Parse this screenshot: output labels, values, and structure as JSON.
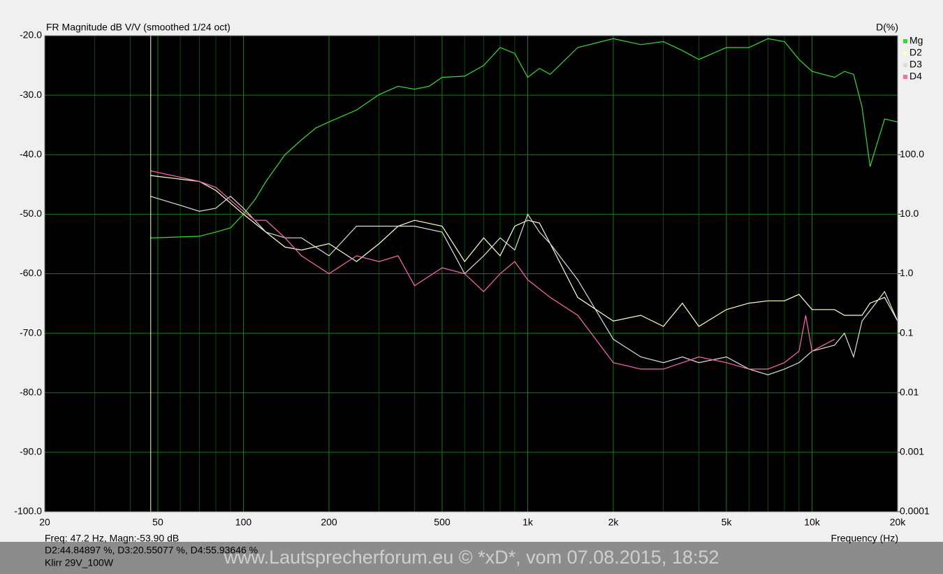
{
  "chart_data": {
    "type": "line",
    "title": "FR Magnitude dB V/V (smoothed 1/24 oct)",
    "y2_label": "D(%)",
    "x_label": "Frequency (Hz)",
    "x_log": true,
    "y2_log": true,
    "grid": true,
    "legend": "right",
    "xlim": [
      20,
      20000
    ],
    "xticks": [
      20,
      50,
      100,
      200,
      500,
      {
        "value": 1000,
        "label": "1k"
      },
      {
        "value": 2000,
        "label": "2k"
      },
      {
        "value": 5000,
        "label": "5k"
      },
      {
        "value": 10000,
        "label": "10k"
      },
      {
        "value": 20000,
        "label": "20k"
      }
    ],
    "x_minor_grid": [
      30,
      40,
      60,
      70,
      80,
      90,
      300,
      400,
      600,
      700,
      800,
      900,
      3000,
      4000,
      6000,
      7000,
      8000,
      9000
    ],
    "ylim": [
      -100,
      -20
    ],
    "yticks": [
      {
        "value": -20,
        "label": "-20.0"
      },
      {
        "value": -30,
        "label": "-30.0"
      },
      {
        "value": -40,
        "label": "-40.0"
      },
      {
        "value": -50,
        "label": "-50.0"
      },
      {
        "value": -60,
        "label": "-60.0"
      },
      {
        "value": -70,
        "label": "-70.0"
      },
      {
        "value": -80,
        "label": "-80.0"
      },
      {
        "value": -90,
        "label": "-90.0"
      },
      {
        "value": -100,
        "label": "-100.0"
      }
    ],
    "y2lim": [
      0.0001,
      10000
    ],
    "y2ticks": [
      {
        "value": 100,
        "label": "100.0"
      },
      {
        "value": 10,
        "label": "10.0"
      },
      {
        "value": 1,
        "label": "1.0"
      },
      0.1,
      0.01,
      0.001,
      0.0001
    ],
    "cursor_x": 47.2,
    "cursor_color": "#ffff99",
    "series": [
      {
        "name": "Mg",
        "color": "#33dd33",
        "x": [
          47,
          70,
          80,
          90,
          100,
          110,
          120,
          140,
          160,
          180,
          200,
          250,
          300,
          350,
          400,
          450,
          500,
          600,
          700,
          800,
          900,
          1000,
          1100,
          1200,
          1500,
          2000,
          2500,
          3000,
          3500,
          4000,
          5000,
          6000,
          7000,
          8000,
          9000,
          10000,
          12000,
          13000,
          14000,
          15000,
          16000,
          18000,
          20000
        ],
        "values": [
          -54,
          -53.7,
          -53,
          -52.3,
          -50,
          -47.5,
          -44.5,
          -40,
          -37.5,
          -35.5,
          -34.5,
          -32.5,
          -29.9,
          -28.5,
          -29,
          -28.5,
          -27,
          -26.8,
          -25,
          -22,
          -23,
          -27,
          -25.5,
          -26.5,
          -22,
          -20.5,
          -21.5,
          -21,
          -22.5,
          -24,
          -22,
          -22,
          -20.5,
          -21,
          -24,
          -26,
          -27,
          -26,
          -26.5,
          -32,
          -42,
          -34,
          -34.5
        ]
      },
      {
        "name": "D2",
        "color": "#ffffcc",
        "axis": "y2",
        "x": [
          47,
          70,
          80,
          100,
          120,
          140,
          160,
          200,
          250,
          300,
          350,
          400,
          500,
          600,
          700,
          800,
          900,
          1000,
          1100,
          1200,
          1500,
          2000,
          2500,
          3000,
          3500,
          4000,
          5000,
          6000,
          7000,
          8000,
          9000,
          10000,
          12000,
          13000,
          15000,
          16000,
          18000,
          20000
        ],
        "values": [
          44.7,
          35.5,
          25.1,
          10,
          5.0,
          2.8,
          2.5,
          3.2,
          1.6,
          3.2,
          6.3,
          7.9,
          6.3,
          1.6,
          4.0,
          2.0,
          6.3,
          7.9,
          7.1,
          3.2,
          0.4,
          0.16,
          0.2,
          0.13,
          0.32,
          0.13,
          0.25,
          0.32,
          0.35,
          0.35,
          0.45,
          0.25,
          0.25,
          0.2,
          0.2,
          0.32,
          0.4,
          0.16
        ]
      },
      {
        "name": "D3",
        "color": "#dddddd",
        "axis": "y2",
        "x": [
          47,
          60,
          70,
          80,
          90,
          100,
          120,
          140,
          160,
          200,
          250,
          300,
          350,
          400,
          500,
          600,
          700,
          800,
          900,
          1000,
          1100,
          1200,
          1500,
          2000,
          2500,
          3000,
          3500,
          4000,
          5000,
          6000,
          7000,
          8000,
          9000,
          10000,
          12000,
          13000,
          14000,
          15000,
          18000,
          20000
        ],
        "values": [
          20,
          14.1,
          11.2,
          12.6,
          20,
          12.6,
          5.0,
          4.0,
          4.0,
          2.0,
          6.3,
          6.3,
          6.3,
          6.3,
          5.0,
          1.0,
          2.0,
          4.0,
          2.5,
          10,
          5.0,
          3.2,
          0.79,
          0.079,
          0.04,
          0.032,
          0.04,
          0.032,
          0.04,
          0.025,
          0.02,
          0.025,
          0.032,
          0.05,
          0.063,
          0.1,
          0.04,
          0.16,
          0.5,
          0.16
        ]
      },
      {
        "name": "D4",
        "color": "#ff66b3",
        "axis": "y2",
        "x": [
          47,
          70,
          80,
          100,
          110,
          120,
          140,
          160,
          200,
          250,
          300,
          350,
          400,
          500,
          600,
          700,
          800,
          900,
          1000,
          1200,
          1500,
          2000,
          2500,
          3000,
          3500,
          4000,
          5000,
          6000,
          7000,
          8000,
          9000,
          9500,
          10000,
          12000
        ],
        "values": [
          53.7,
          35.5,
          28.2,
          11.2,
          7.9,
          7.9,
          4.0,
          2.0,
          1.0,
          2.0,
          1.6,
          2.0,
          0.63,
          1.26,
          1.0,
          0.5,
          1.0,
          1.6,
          0.79,
          0.4,
          0.2,
          0.032,
          0.025,
          0.025,
          0.032,
          0.04,
          0.032,
          0.025,
          0.025,
          0.032,
          0.05,
          0.2,
          0.05,
          0.079
        ]
      }
    ],
    "readout": [
      "Freq: 47.2 Hz, Magn:-53.90 dB",
      "D2:44.84897 %, D3:20.55077 %, D4:55.93646 %",
      "Klirr 29V_100W"
    ],
    "watermark": "www.Lautsprecherforum.eu © *xD*, vom 07.08.2015, 18:52"
  }
}
